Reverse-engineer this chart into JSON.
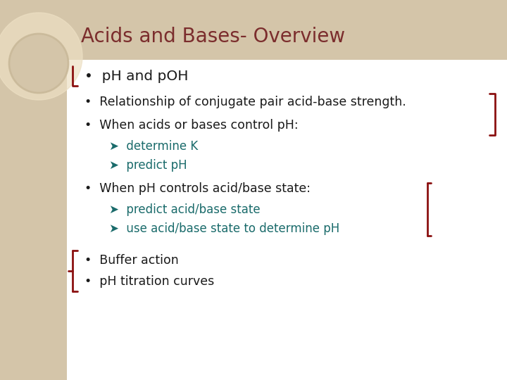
{
  "title": "Acids and Bases- Overview",
  "title_color": "#7B2D2D",
  "title_fontsize": 20,
  "header_bg": "#D4C5A9",
  "left_panel_bg": "#D4C5A9",
  "main_bg": "#FFFFFF",
  "slide_bg": "#D4C5A9",
  "bullet1": "pH and pOH",
  "bullet2": "Relationship of conjugate pair acid-base strength.",
  "bullet3": "When acids or bases control pH:",
  "sub1a": "determine K",
  "sub1b": "predict pH",
  "bullet4": "When pH controls acid/base state:",
  "sub2a": "predict acid/base state",
  "sub2b": "use acid/base state to determine pH",
  "bullet5": "Buffer action",
  "bullet6": "pH titration curves",
  "text_color": "#1A1A1A",
  "sub_color": "#1A6B6B",
  "annotation_color": "#8B1010"
}
